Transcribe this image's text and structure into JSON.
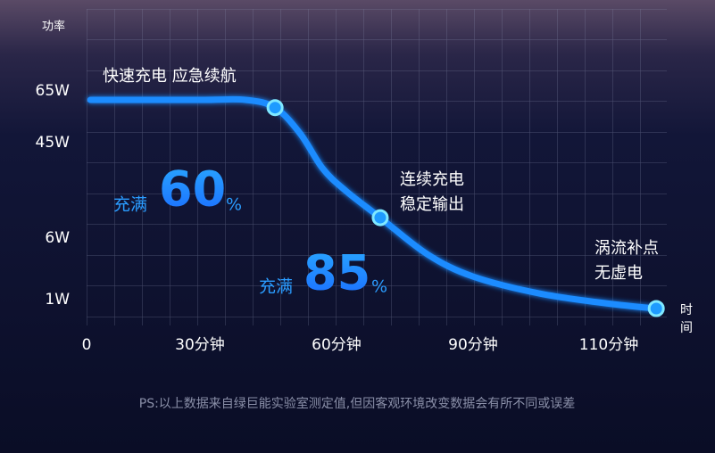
{
  "chart_data": {
    "type": "line",
    "y_label": "功率",
    "x_label": "时间",
    "annotations": {
      "fast": "快速充电  应急续航",
      "steady": [
        "连续充电",
        "稳定输出"
      ],
      "trickle": [
        "涡流补点",
        "无虚电"
      ]
    },
    "milestones": [
      {
        "prefix": "充满",
        "value": 60,
        "unit": "%"
      },
      {
        "prefix": "充满",
        "value": 85,
        "unit": "%"
      }
    ],
    "footnote": "PS:以上数据来自绿巨能实验室测定值,但因客观环境改变数据会有所不同或误差",
    "xticks": [
      0,
      {
        "value": 30,
        "label": "30分钟"
      },
      {
        "value": 60,
        "label": "60分钟"
      },
      {
        "value": 90,
        "label": "90分钟"
      },
      {
        "value": 110,
        "label": "110分钟"
      }
    ],
    "yticks": [
      {
        "value": 65,
        "label": "65W"
      },
      {
        "value": 45,
        "label": "45W"
      },
      {
        "value": 6,
        "label": "6W"
      },
      {
        "value": 1,
        "label": "1W"
      }
    ],
    "grid": true,
    "series": [
      {
        "name": "功率",
        "color": "#1a8cff",
        "x": [
          1,
          30,
          40,
          46.5,
          52,
          57,
          62,
          69.6,
          80,
          90,
          100,
          110,
          117
        ],
        "values": [
          65,
          65,
          65,
          62,
          52,
          38,
          29,
          18,
          5.4,
          3.6,
          2.2,
          1.4,
          1
        ]
      }
    ]
  }
}
